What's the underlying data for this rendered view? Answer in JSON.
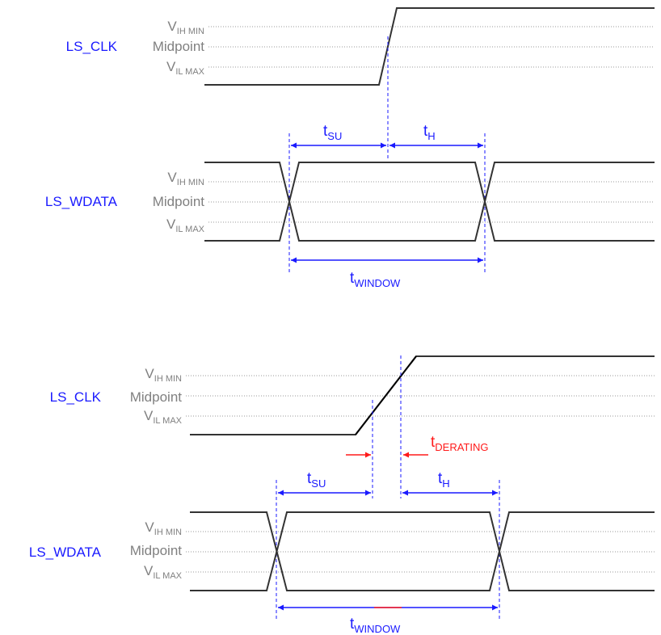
{
  "signals": {
    "clk": "LS_CLK",
    "wdata": "LS_WDATA"
  },
  "levels": {
    "vih_main": "V",
    "vih_sub": "IH MIN",
    "mid": "Midpoint",
    "vil_main": "V",
    "vil_sub": "IL MAX"
  },
  "labels": {
    "t": "t",
    "su": "SU",
    "h": "H",
    "window": "WINDOW",
    "derating": "DERATING"
  },
  "colors": {
    "signal": "#1a1aff",
    "level": "#808080",
    "derating": "#ff1a1a",
    "waveform": "#333333"
  }
}
